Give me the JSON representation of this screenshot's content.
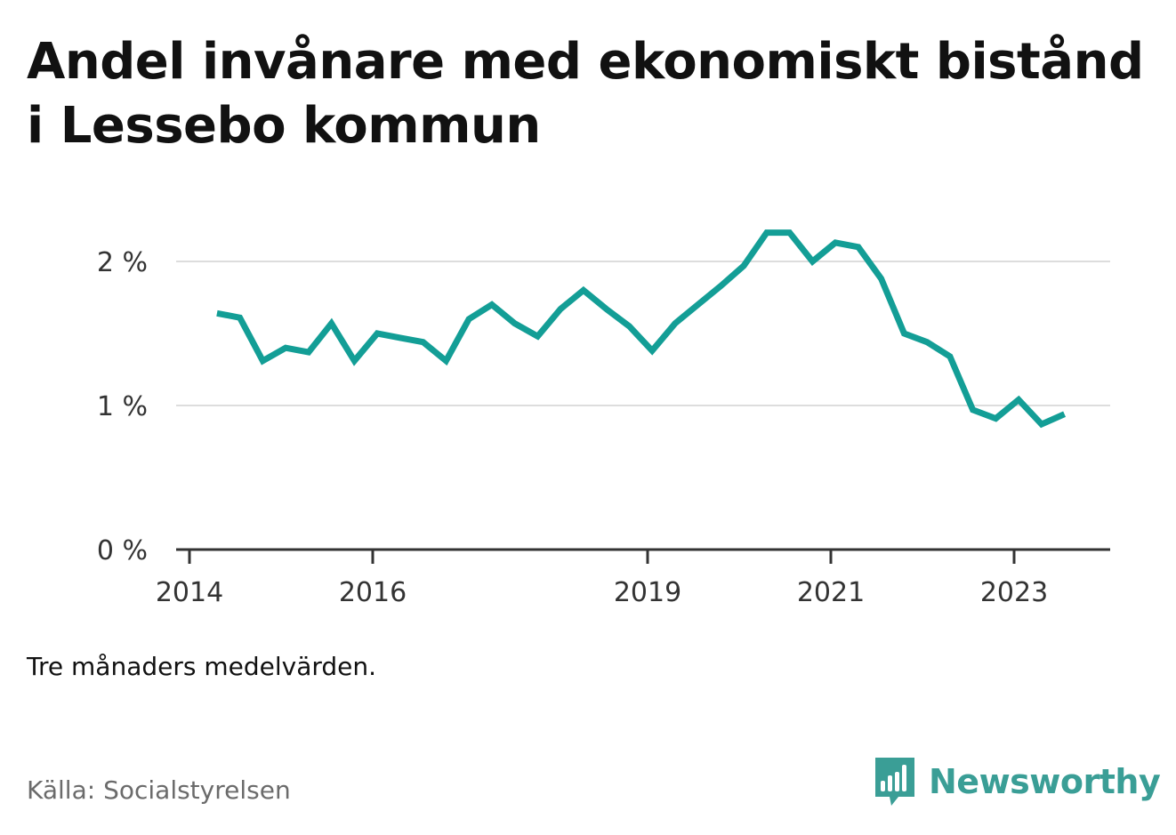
{
  "title": "Andel invånare med ekonomiskt bistånd i Lessebo kommun",
  "note": "Tre månaders medelvärden.",
  "source": "Källa: Socialstyrelsen",
  "brand": {
    "name": "Newsworthy",
    "color": "#3a9e96",
    "icon": "bar-chart-speech-bubble-icon"
  },
  "chart_data": {
    "type": "line",
    "x_unit": "year",
    "y_unit": "%",
    "ylim": [
      0,
      2.4
    ],
    "xlim": [
      2013.9,
      2023.98
    ],
    "grid": true,
    "line_color": "#139e96",
    "y_ticks": [
      {
        "value": 0,
        "label": "0 %"
      },
      {
        "value": 1,
        "label": "1 %"
      },
      {
        "value": 2,
        "label": "2 %"
      }
    ],
    "x_ticks": [
      {
        "value": 2014,
        "label": "2014"
      },
      {
        "value": 2016,
        "label": "2016"
      },
      {
        "value": 2019,
        "label": "2019"
      },
      {
        "value": 2021,
        "label": "2021"
      },
      {
        "value": 2023,
        "label": "2023"
      }
    ],
    "series": [
      {
        "name": "",
        "x": [
          2014.3,
          2014.55,
          2014.8,
          2015.05,
          2015.3,
          2015.55,
          2015.8,
          2016.05,
          2016.3,
          2016.55,
          2016.8,
          2017.05,
          2017.3,
          2017.55,
          2017.8,
          2018.05,
          2018.3,
          2018.55,
          2018.8,
          2019.05,
          2019.3,
          2019.55,
          2019.8,
          2020.05,
          2020.3,
          2020.55,
          2020.8,
          2021.05,
          2021.3,
          2021.55,
          2021.8,
          2022.05,
          2022.3,
          2022.55,
          2022.8,
          2023.05,
          2023.3,
          2023.55
        ],
        "y": [
          1.64,
          1.61,
          1.31,
          1.4,
          1.37,
          1.57,
          1.31,
          1.5,
          1.47,
          1.44,
          1.31,
          1.6,
          1.7,
          1.57,
          1.48,
          1.67,
          1.8,
          1.67,
          1.55,
          1.38,
          1.57,
          1.7,
          1.83,
          1.97,
          2.2,
          2.2,
          2.0,
          2.13,
          2.1,
          1.88,
          1.5,
          1.44,
          1.34,
          0.97,
          0.91,
          1.04,
          0.87,
          0.94
        ]
      }
    ]
  }
}
